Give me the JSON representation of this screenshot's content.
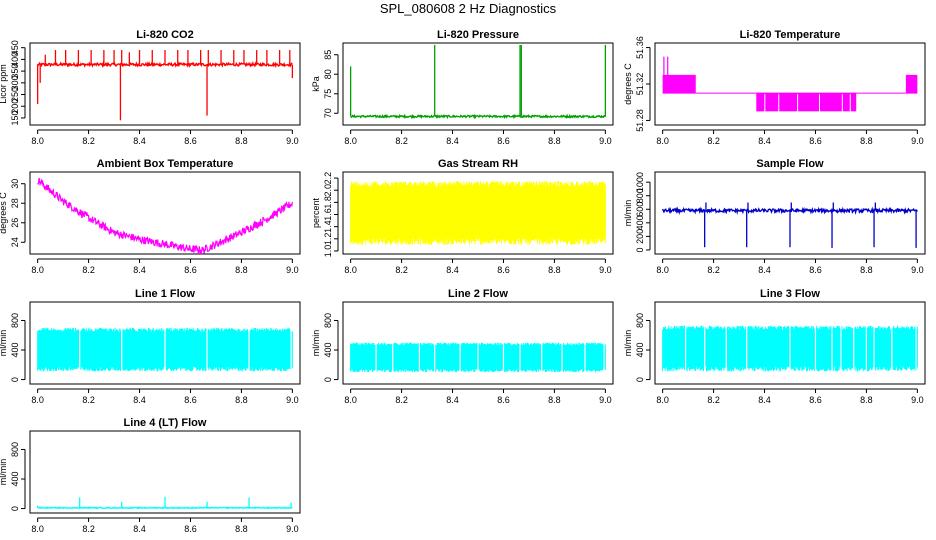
{
  "figure": {
    "title": "SPL_080608  2 Hz Diagnostics"
  },
  "chart_data": [
    {
      "id": "co2",
      "type": "line",
      "title": "Li-820 CO2",
      "ylabel": "Licor ppm",
      "color": "#ff0000",
      "xlim": [
        7.97,
        9.03
      ],
      "ylim": [
        120,
        470
      ],
      "xticks": [
        "8.0",
        "8.2",
        "8.4",
        "8.6",
        "8.8",
        "9.0"
      ],
      "yticks": [
        "150",
        "200",
        "250",
        "300",
        "350",
        "400",
        "450"
      ],
      "series": [
        {
          "name": "Li-820 CO2",
          "baseline": 378,
          "noise": 6,
          "range": [
            8.0,
            9.0
          ],
          "spikes": [
            [
              8.0,
              210
            ],
            [
              8.01,
              300
            ],
            [
              8.03,
              420
            ],
            [
              8.07,
              440
            ],
            [
              8.11,
              440
            ],
            [
              8.16,
              440
            ],
            [
              8.21,
              440
            ],
            [
              8.26,
              440
            ],
            [
              8.3,
              440
            ],
            [
              8.325,
              140
            ],
            [
              8.33,
              440
            ],
            [
              8.36,
              430
            ],
            [
              8.4,
              440
            ],
            [
              8.45,
              440
            ],
            [
              8.5,
              440
            ],
            [
              8.55,
              440
            ],
            [
              8.59,
              440
            ],
            [
              8.64,
              440
            ],
            [
              8.665,
              160
            ],
            [
              8.67,
              440
            ],
            [
              8.72,
              440
            ],
            [
              8.77,
              440
            ],
            [
              8.81,
              440
            ],
            [
              8.86,
              440
            ],
            [
              8.9,
              440
            ],
            [
              8.95,
              440
            ],
            [
              8.99,
              440
            ],
            [
              9.0,
              320
            ]
          ]
        }
      ]
    },
    {
      "id": "pressure",
      "type": "line",
      "title": "Li-820 Pressure",
      "ylabel": "kPa",
      "color": "#00a000",
      "xlim": [
        7.97,
        9.03
      ],
      "ylim": [
        67,
        88
      ],
      "xticks": [
        "8.0",
        "8.2",
        "8.4",
        "8.6",
        "8.8",
        "9.0"
      ],
      "yticks": [
        "70",
        "75",
        "80",
        "85"
      ],
      "series": [
        {
          "name": "Li-820 Pressure",
          "baseline": 69.2,
          "noise": 0.25,
          "range": [
            8.0,
            9.0
          ],
          "spikes": [
            [
              8.0,
              82
            ],
            [
              8.33,
              87.5
            ],
            [
              8.665,
              87.5
            ],
            [
              8.67,
              87.5
            ],
            [
              9.0,
              87.5
            ]
          ]
        }
      ]
    },
    {
      "id": "li820temp",
      "type": "step",
      "title": "Li-820 Temperature",
      "ylabel": "degrees C",
      "color": "#ff00ff",
      "xlim": [
        7.97,
        9.03
      ],
      "ylim": [
        51.275,
        51.365
      ],
      "xticks": [
        "8.0",
        "8.2",
        "8.4",
        "8.6",
        "8.8",
        "9.0"
      ],
      "yticks": [
        "51.28",
        "51.32",
        "51.36"
      ],
      "series": [
        {
          "name": "Li-820 Temperature",
          "baseline": 51.31,
          "high_band": [
            [
              8.0,
              8.13
            ],
            [
              8.955,
              9.0
            ]
          ],
          "high": 51.33,
          "low_band": [
            [
              8.37,
              8.76
            ]
          ],
          "low": 51.29,
          "spikes": [
            [
              8.005,
              51.35
            ],
            [
              8.02,
              51.35
            ],
            [
              8.37,
              51.29
            ],
            [
              8.38,
              51.29
            ]
          ]
        }
      ]
    },
    {
      "id": "ambient",
      "type": "line",
      "title": "Ambient Box Temperature",
      "ylabel": "degrees C",
      "color": "#ff00ff",
      "xlim": [
        7.97,
        9.03
      ],
      "ylim": [
        22.8,
        31.2
      ],
      "xticks": [
        "8.0",
        "8.2",
        "8.4",
        "8.6",
        "8.8",
        "9.0"
      ],
      "yticks": [
        "24",
        "26",
        "28",
        "30"
      ],
      "series": [
        {
          "name": "Ambient Box Temperature",
          "noise": 0.4,
          "x": [
            8.0,
            8.1,
            8.2,
            8.3,
            8.4,
            8.5,
            8.6,
            8.65,
            8.7,
            8.8,
            8.9,
            9.0
          ],
          "y": [
            30.4,
            28.2,
            26.5,
            25.0,
            24.3,
            23.8,
            23.3,
            23.2,
            23.8,
            25.0,
            26.4,
            28.0
          ]
        }
      ]
    },
    {
      "id": "rh",
      "type": "band",
      "title": "Gas Stream RH",
      "ylabel": "percent",
      "color": "#ffff00",
      "xlim": [
        7.97,
        9.03
      ],
      "ylim": [
        0.95,
        2.3
      ],
      "xticks": [
        "8.0",
        "8.2",
        "8.4",
        "8.6",
        "8.8",
        "9.0"
      ],
      "yticks": [
        "1.0",
        "1.2",
        "1.4",
        "1.6",
        "1.8",
        "2.0",
        "2.2"
      ],
      "series": [
        {
          "name": "Gas Stream RH",
          "low": 1.1,
          "high": 2.15,
          "range": [
            8.0,
            9.0
          ]
        }
      ]
    },
    {
      "id": "sampleflow",
      "type": "line",
      "title": "Sample Flow",
      "ylabel": "ml/min",
      "color": "#0000cc",
      "xlim": [
        7.97,
        9.03
      ],
      "ylim": [
        -60,
        1150
      ],
      "xticks": [
        "8.0",
        "8.2",
        "8.4",
        "8.6",
        "8.8",
        "9.0"
      ],
      "yticks": [
        "0",
        "200",
        "400",
        "600",
        "800",
        "1000"
      ],
      "series": [
        {
          "name": "Sample Flow",
          "baseline": 580,
          "noise": 25,
          "range": [
            8.0,
            9.0
          ],
          "spikes": [
            [
              8.165,
              40
            ],
            [
              8.17,
              700
            ],
            [
              8.33,
              40
            ],
            [
              8.335,
              700
            ],
            [
              8.5,
              40
            ],
            [
              8.505,
              700
            ],
            [
              8.665,
              30
            ],
            [
              8.67,
              700
            ],
            [
              8.83,
              40
            ],
            [
              8.835,
              700
            ],
            [
              8.995,
              30
            ]
          ]
        }
      ]
    },
    {
      "id": "line1",
      "type": "band",
      "title": "Line 1 Flow",
      "ylabel": "ml/min",
      "color": "#00ffff",
      "xlim": [
        7.97,
        9.03
      ],
      "ylim": [
        -60,
        1050
      ],
      "xticks": [
        "8.0",
        "8.2",
        "8.4",
        "8.6",
        "8.8",
        "9.0"
      ],
      "yticks": [
        "0",
        "400",
        "800"
      ],
      "series": [
        {
          "name": "Line 1 Flow",
          "low": 110,
          "high": 700,
          "range": [
            8.0,
            9.0
          ],
          "gaps": [
            8.165,
            8.33,
            8.5,
            8.665,
            8.83,
            8.995
          ]
        }
      ]
    },
    {
      "id": "line2",
      "type": "band",
      "title": "Line 2 Flow",
      "ylabel": "ml/min",
      "color": "#00ffff",
      "xlim": [
        7.97,
        9.03
      ],
      "ylim": [
        -60,
        1050
      ],
      "xticks": [
        "8.0",
        "8.2",
        "8.4",
        "8.6",
        "8.8",
        "9.0"
      ],
      "yticks": [
        "0",
        "400",
        "800"
      ],
      "series": [
        {
          "name": "Line 2 Flow",
          "low": 100,
          "high": 500,
          "range": [
            8.0,
            9.0
          ],
          "gaps": [
            8.1,
            8.165,
            8.27,
            8.33,
            8.43,
            8.5,
            8.6,
            8.665,
            8.75,
            8.83,
            8.92,
            8.995
          ]
        }
      ]
    },
    {
      "id": "line3",
      "type": "band",
      "title": "Line 3 Flow",
      "ylabel": "ml/min",
      "color": "#00ffff",
      "xlim": [
        7.97,
        9.03
      ],
      "ylim": [
        -60,
        1050
      ],
      "xticks": [
        "8.0",
        "8.2",
        "8.4",
        "8.6",
        "8.8",
        "9.0"
      ],
      "yticks": [
        "0",
        "400",
        "800"
      ],
      "series": [
        {
          "name": "Line 3 Flow",
          "low": 110,
          "high": 730,
          "range": [
            8.0,
            9.0
          ],
          "gaps": [
            8.09,
            8.165,
            8.25,
            8.33,
            8.5,
            8.6,
            8.665,
            8.7,
            8.75,
            8.8,
            8.83,
            8.9,
            8.995
          ]
        }
      ]
    },
    {
      "id": "line4",
      "type": "line",
      "title": "Line 4 (LT) Flow",
      "ylabel": "ml/min",
      "color": "#00ffff",
      "xlim": [
        7.97,
        9.03
      ],
      "ylim": [
        -60,
        1050
      ],
      "xticks": [
        "8.0",
        "8.2",
        "8.4",
        "8.6",
        "8.8",
        "9.0"
      ],
      "yticks": [
        "0",
        "400",
        "800"
      ],
      "series": [
        {
          "name": "Line 4 (LT) Flow",
          "baseline": 10,
          "noise": 6,
          "range": [
            8.0,
            9.0
          ],
          "spikes": [
            [
              8.0,
              40
            ],
            [
              8.165,
              150
            ],
            [
              8.33,
              90
            ],
            [
              8.5,
              160
            ],
            [
              8.665,
              90
            ],
            [
              8.83,
              150
            ],
            [
              8.995,
              80
            ]
          ]
        }
      ]
    }
  ]
}
